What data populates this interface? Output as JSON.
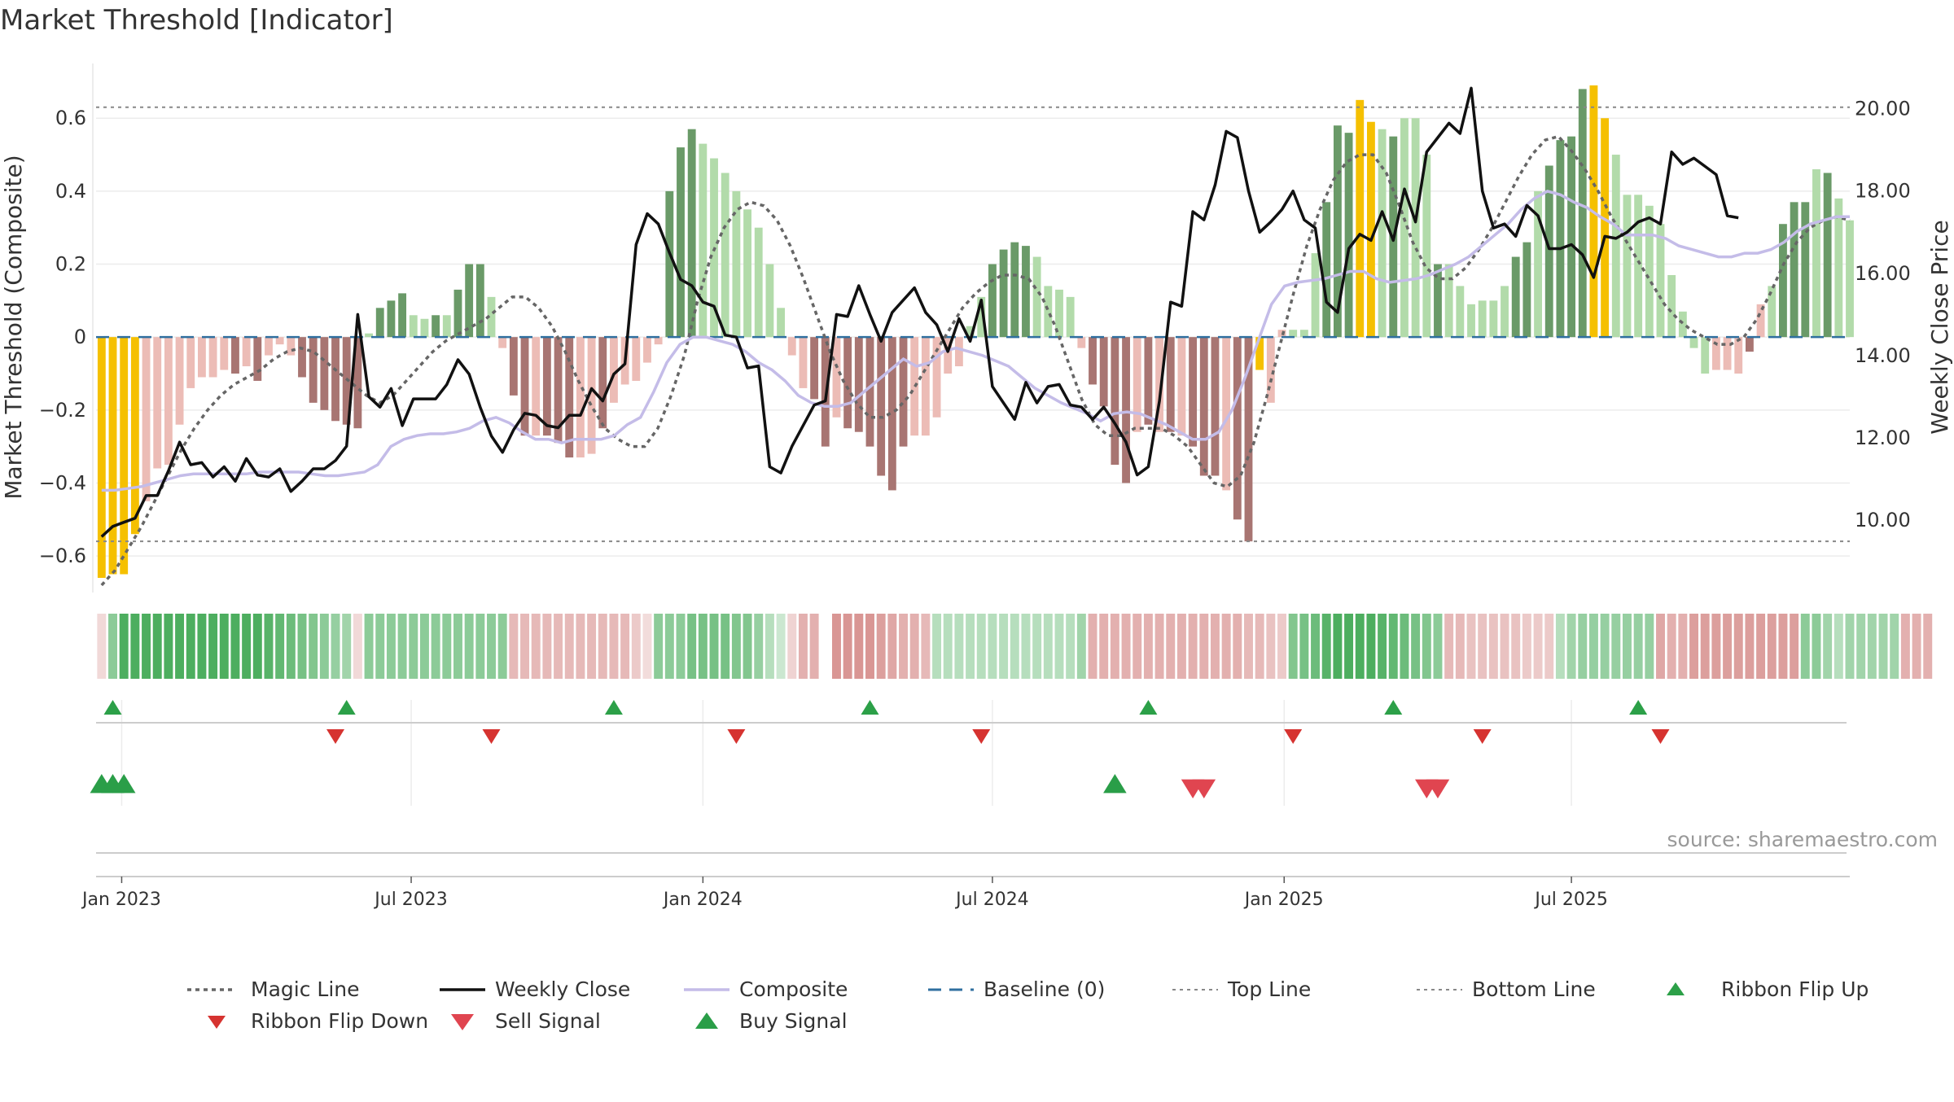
{
  "chart_data": {
    "type": "bar",
    "title": "Market Threshold [Indicator]",
    "ylabel": "Market Threshold (Composite)",
    "y2label": "Weekly Close Price",
    "source": "source: sharemaestro.com",
    "ylim": [
      -0.66,
      0.75
    ],
    "y2lim": [
      8.6,
      21.1
    ],
    "yticks": [
      "0.6",
      "0.4",
      "0.2",
      "0",
      "−0.2",
      "−0.4",
      "−0.6"
    ],
    "ytick_values": [
      0.6,
      0.4,
      0.2,
      0,
      -0.2,
      -0.4,
      -0.6
    ],
    "y2ticks": [
      "20.00",
      "18.00",
      "16.00",
      "14.00",
      "12.00",
      "10.00"
    ],
    "y2tick_values": [
      20,
      18,
      16,
      14,
      12,
      10
    ],
    "xtick_labels": [
      "Jan 2023",
      "Jul 2023",
      "Jan 2024",
      "Jul 2024",
      "Jan 2025",
      "Jul 2025"
    ],
    "xtick_weeks": [
      1.8,
      27.8,
      54,
      80,
      106.2,
      132
    ],
    "top_line": 0.63,
    "bottom_line": -0.56,
    "baseline": 0,
    "grid": true,
    "legend_position": "bottom",
    "colors": {
      "highlight": "#f5c000",
      "pos_strong": "#6a9a68",
      "pos_light": "#b2dbaa",
      "neg_strong": "#a87572",
      "neg_light": "#ecbcb6",
      "weekly_close": "#111111",
      "composite": "#c4bce8",
      "magic": "#666666",
      "baseline": "#2f6f9f",
      "ribbon_up": "#2ca048",
      "ribbon_down": "#d63330",
      "sell": "#e04550",
      "buy": "#2a9e48"
    },
    "legend": [
      {
        "key": "magic",
        "label": "Magic Line"
      },
      {
        "key": "close",
        "label": "Weekly Close"
      },
      {
        "key": "composite",
        "label": "Composite"
      },
      {
        "key": "baseline",
        "label": "Baseline (0)"
      },
      {
        "key": "top",
        "label": "Top Line"
      },
      {
        "key": "bottom",
        "label": "Bottom Line"
      },
      {
        "key": "flip_up",
        "label": "Ribbon Flip Up"
      },
      {
        "key": "flip_down",
        "label": "Ribbon Flip Down"
      },
      {
        "key": "sell",
        "label": "Sell Signal"
      },
      {
        "key": "buy",
        "label": "Buy Signal"
      }
    ],
    "composite_bars": [
      -0.66,
      -0.65,
      -0.65,
      -0.54,
      -0.45,
      -0.36,
      -0.35,
      -0.24,
      -0.14,
      -0.11,
      -0.11,
      -0.09,
      -0.1,
      -0.08,
      -0.12,
      -0.05,
      -0.02,
      -0.05,
      -0.11,
      -0.18,
      -0.2,
      -0.23,
      -0.24,
      -0.25,
      0.01,
      0.08,
      0.1,
      0.12,
      0.06,
      0.05,
      0.06,
      0.06,
      0.13,
      0.2,
      0.2,
      0.11,
      -0.03,
      -0.16,
      -0.27,
      -0.27,
      -0.27,
      -0.29,
      -0.33,
      -0.33,
      -0.32,
      -0.25,
      -0.18,
      -0.13,
      -0.12,
      -0.07,
      -0.02,
      0.4,
      0.52,
      0.57,
      0.53,
      0.49,
      0.45,
      0.4,
      0.35,
      0.3,
      0.2,
      0.08,
      -0.05,
      -0.14,
      -0.17,
      -0.3,
      -0.22,
      -0.25,
      -0.26,
      -0.3,
      -0.38,
      -0.42,
      -0.3,
      -0.27,
      -0.27,
      -0.22,
      -0.1,
      -0.08,
      0.03,
      0.11,
      0.2,
      0.24,
      0.26,
      0.25,
      0.22,
      0.14,
      0.13,
      0.11,
      -0.03,
      -0.13,
      -0.19,
      -0.35,
      -0.4,
      -0.26,
      -0.24,
      -0.26,
      -0.26,
      -0.27,
      -0.3,
      -0.38,
      -0.38,
      -0.42,
      -0.5,
      -0.56,
      -0.09,
      -0.18,
      0.02,
      0.02,
      0.02,
      0.23,
      0.37,
      0.58,
      0.56,
      0.65,
      0.59,
      0.57,
      0.55,
      0.6,
      0.6,
      0.5,
      0.2,
      0.2,
      0.14,
      0.09,
      0.1,
      0.1,
      0.14,
      0.22,
      0.26,
      0.4,
      0.47,
      0.54,
      0.55,
      0.68,
      0.69,
      0.6,
      0.5,
      0.39,
      0.39,
      0.36,
      0.31,
      0.17,
      0.07,
      -0.03,
      -0.1,
      -0.09,
      -0.09,
      -0.1,
      -0.04,
      0.09,
      0.14,
      0.31,
      0.37,
      0.37,
      0.46,
      0.45,
      0.38,
      0.32
    ],
    "bar_styles": [
      "h",
      "h",
      "h",
      "h",
      "nl",
      "nl",
      "nl",
      "nl",
      "nl",
      "nl",
      "nl",
      "nl",
      "ns",
      "nl",
      "ns",
      "nl",
      "nl",
      "nl",
      "ns",
      "ns",
      "ns",
      "ns",
      "ns",
      "ns",
      "pl",
      "ps",
      "ps",
      "ps",
      "pl",
      "pl",
      "ps",
      "pl",
      "ps",
      "ps",
      "ps",
      "pl",
      "nl",
      "ns",
      "ns",
      "nl",
      "ns",
      "ns",
      "ns",
      "nl",
      "nl",
      "ns",
      "nl",
      "nl",
      "nl",
      "nl",
      "nl",
      "ps",
      "ps",
      "ps",
      "pl",
      "pl",
      "pl",
      "pl",
      "pl",
      "pl",
      "pl",
      "pl",
      "nl",
      "nl",
      "ns",
      "ns",
      "nl",
      "ns",
      "ns",
      "ns",
      "ns",
      "ns",
      "ns",
      "nl",
      "nl",
      "nl",
      "nl",
      "nl",
      "pl",
      "pl",
      "ps",
      "ps",
      "ps",
      "ps",
      "pl",
      "pl",
      "pl",
      "pl",
      "nl",
      "ns",
      "ns",
      "ns",
      "ns",
      "nl",
      "ns",
      "nl",
      "ns",
      "nl",
      "ns",
      "ns",
      "ns",
      "nl",
      "ns",
      "ns",
      "h",
      "nl",
      "nl",
      "pl",
      "pl",
      "pl",
      "ps",
      "ps",
      "ps",
      "h",
      "h",
      "pl",
      "ps",
      "pl",
      "pl",
      "pl",
      "ps",
      "pl",
      "pl",
      "pl",
      "pl",
      "pl",
      "pl",
      "ps",
      "ps",
      "pl",
      "ps",
      "ps",
      "ps",
      "ps",
      "h",
      "h",
      "pl",
      "pl",
      "pl",
      "pl",
      "pl",
      "pl",
      "pl",
      "pl",
      "pl",
      "nl",
      "nl",
      "nl",
      "ns",
      "nl",
      "pl",
      "ps",
      "ps",
      "ps",
      "pl",
      "ps",
      "pl",
      "pl",
      "pl"
    ],
    "weekly_close": [
      9.6,
      9.85,
      9.95,
      10.05,
      10.6,
      10.6,
      11.2,
      11.9,
      11.35,
      11.4,
      11.05,
      11.3,
      10.95,
      11.5,
      11.1,
      11.05,
      11.25,
      10.7,
      10.95,
      11.25,
      11.25,
      11.45,
      11.8,
      15.0,
      13.0,
      12.75,
      13.2,
      12.3,
      12.95,
      12.95,
      12.95,
      13.3,
      13.9,
      13.55,
      12.75,
      12.05,
      11.65,
      12.2,
      12.6,
      12.55,
      12.3,
      12.25,
      12.55,
      12.55,
      13.2,
      12.9,
      13.55,
      13.8,
      16.7,
      17.45,
      17.2,
      16.5,
      15.85,
      15.7,
      15.3,
      15.2,
      14.5,
      14.45,
      13.7,
      13.75,
      11.3,
      11.15,
      11.8,
      12.3,
      12.8,
      12.9,
      15.0,
      14.95,
      15.7,
      15.0,
      14.35,
      15.05,
      15.35,
      15.65,
      15.05,
      14.75,
      14.1,
      14.9,
      14.35,
      15.35,
      13.25,
      12.85,
      12.45,
      13.35,
      12.85,
      13.25,
      13.3,
      12.8,
      12.75,
      12.45,
      12.75,
      12.35,
      11.9,
      11.1,
      11.3,
      12.9,
      15.3,
      15.2,
      17.5,
      17.3,
      18.15,
      19.45,
      19.3,
      18.0,
      17.0,
      17.25,
      17.55,
      18.0,
      17.3,
      17.1,
      15.3,
      15.05,
      16.6,
      16.95,
      16.8,
      17.5,
      16.8,
      18.05,
      17.25,
      18.95,
      19.3,
      19.65,
      19.4,
      20.5,
      18.0,
      17.1,
      17.2,
      16.9,
      17.65,
      17.4,
      16.6,
      16.6,
      16.7,
      16.45,
      15.9,
      16.9,
      16.85,
      17.0,
      17.25,
      17.35,
      17.2,
      18.95,
      18.65,
      18.8,
      18.6,
      18.4,
      17.4,
      17.35
    ],
    "composite_line": [
      -0.42,
      -0.42,
      -0.415,
      -0.41,
      -0.4,
      -0.39,
      -0.38,
      -0.375,
      -0.375,
      -0.375,
      -0.375,
      -0.375,
      -0.37,
      -0.37,
      -0.37,
      -0.37,
      -0.375,
      -0.38,
      -0.38,
      -0.375,
      -0.37,
      -0.35,
      -0.3,
      -0.28,
      -0.27,
      -0.265,
      -0.265,
      -0.26,
      -0.25,
      -0.23,
      -0.22,
      -0.235,
      -0.26,
      -0.28,
      -0.28,
      -0.29,
      -0.28,
      -0.28,
      -0.28,
      -0.27,
      -0.24,
      -0.22,
      -0.15,
      -0.07,
      -0.02,
      0,
      0,
      -0.01,
      -0.02,
      -0.04,
      -0.07,
      -0.09,
      -0.12,
      -0.16,
      -0.18,
      -0.19,
      -0.19,
      -0.18,
      -0.15,
      -0.12,
      -0.09,
      -0.06,
      -0.08,
      -0.07,
      -0.04,
      -0.03,
      -0.04,
      -0.05,
      -0.065,
      -0.08,
      -0.11,
      -0.14,
      -0.16,
      -0.18,
      -0.195,
      -0.21,
      -0.23,
      -0.21,
      -0.205,
      -0.21,
      -0.225,
      -0.24,
      -0.26,
      -0.28,
      -0.28,
      -0.26,
      -0.2,
      -0.11,
      -0.01,
      0.09,
      0.14,
      0.15,
      0.155,
      0.16,
      0.17,
      0.18,
      0.18,
      0.16,
      0.15,
      0.155,
      0.16,
      0.17,
      0.185,
      0.2,
      0.22,
      0.25,
      0.28,
      0.31,
      0.35,
      0.38,
      0.4,
      0.39,
      0.37,
      0.355,
      0.33,
      0.31,
      0.28,
      0.28,
      0.28,
      0.27,
      0.25,
      0.24,
      0.23,
      0.22,
      0.22,
      0.23,
      0.23,
      0.24,
      0.26,
      0.29,
      0.31,
      0.32,
      0.33,
      0.33
    ],
    "composite_line_start": 0,
    "magic_line": [
      -0.68,
      -0.64,
      -0.58,
      -0.52,
      -0.45,
      -0.38,
      -0.31,
      -0.25,
      -0.2,
      -0.16,
      -0.13,
      -0.11,
      -0.09,
      -0.06,
      -0.04,
      -0.03,
      -0.04,
      -0.07,
      -0.1,
      -0.13,
      -0.16,
      -0.18,
      -0.16,
      -0.12,
      -0.08,
      -0.04,
      -0.01,
      0.01,
      0.03,
      0.05,
      0.08,
      0.11,
      0.11,
      0.08,
      0.03,
      -0.04,
      -0.12,
      -0.19,
      -0.25,
      -0.28,
      -0.3,
      -0.3,
      -0.25,
      -0.16,
      -0.05,
      0.1,
      0.22,
      0.3,
      0.35,
      0.37,
      0.36,
      0.32,
      0.25,
      0.16,
      0.06,
      -0.04,
      -0.12,
      -0.18,
      -0.22,
      -0.22,
      -0.2,
      -0.16,
      -0.1,
      -0.04,
      0.02,
      0.08,
      0.12,
      0.15,
      0.17,
      0.17,
      0.16,
      0.11,
      0.03,
      -0.07,
      -0.17,
      -0.24,
      -0.27,
      -0.27,
      -0.25,
      -0.25,
      -0.25,
      -0.27,
      -0.3,
      -0.35,
      -0.4,
      -0.41,
      -0.38,
      -0.29,
      -0.16,
      -0.02,
      0.12,
      0.25,
      0.35,
      0.43,
      0.48,
      0.5,
      0.5,
      0.45,
      0.36,
      0.26,
      0.19,
      0.16,
      0.16,
      0.19,
      0.24,
      0.3,
      0.37,
      0.44,
      0.5,
      0.54,
      0.55,
      0.51,
      0.46,
      0.4,
      0.33,
      0.27,
      0.21,
      0.15,
      0.09,
      0.05,
      0.02,
      0,
      -0.02,
      -0.02,
      0,
      0.05,
      0.12,
      0.2,
      0.26,
      0.3,
      0.32,
      0.33,
      0.32
    ],
    "magic_line_start": 0,
    "ribbon_opacity": [
      0.22,
      0.55,
      0.85,
      0.85,
      0.85,
      0.85,
      0.85,
      0.85,
      0.85,
      0.85,
      0.85,
      0.85,
      0.85,
      0.85,
      0.85,
      0.8,
      0.75,
      0.7,
      0.65,
      0.6,
      0.55,
      0.5,
      0.45,
      0.22,
      0.55,
      0.55,
      0.55,
      0.55,
      0.55,
      0.55,
      0.55,
      0.55,
      0.55,
      0.55,
      0.55,
      0.55,
      0.55,
      0.4,
      0.4,
      0.4,
      0.4,
      0.4,
      0.4,
      0.4,
      0.4,
      0.4,
      0.4,
      0.4,
      0.3,
      0.2,
      0.55,
      0.55,
      0.55,
      0.65,
      0.65,
      0.65,
      0.65,
      0.6,
      0.6,
      0.5,
      0.35,
      0.25,
      0.25,
      0.45,
      0.45,
      -1,
      0.6,
      0.6,
      0.6,
      0.6,
      0.55,
      0.5,
      0.45,
      0.45,
      0.4,
      0.35,
      0.35,
      0.35,
      0.35,
      0.35,
      0.35,
      0.35,
      0.35,
      0.35,
      0.35,
      0.35,
      0.35,
      0.35,
      0.45,
      0.45,
      0.45,
      0.45,
      0.45,
      0.45,
      0.45,
      0.45,
      0.45,
      0.45,
      0.45,
      0.45,
      0.45,
      0.45,
      0.45,
      0.4,
      0.4,
      0.35,
      0.3,
      0.6,
      0.65,
      0.7,
      0.8,
      0.85,
      0.85,
      0.85,
      0.85,
      0.8,
      0.75,
      0.7,
      0.65,
      0.6,
      0.55,
      0.4,
      0.4,
      0.35,
      0.35,
      0.35,
      0.35,
      0.35,
      0.3,
      0.3,
      0.3,
      0.35,
      0.45,
      0.5,
      0.5,
      0.5,
      0.5,
      0.5,
      0.5,
      0.5,
      0.5,
      0.45,
      0.45,
      0.55,
      0.55,
      0.55,
      0.55,
      0.55,
      0.55,
      0.55,
      0.55,
      0.55,
      0.55,
      0.55,
      0.55,
      0.45,
      0.35,
      0.45,
      0.45,
      0.45,
      0.45,
      0.45,
      0.45,
      0.45,
      0.45
    ],
    "ribbon_sign": [
      -1,
      1,
      1,
      1,
      1,
      1,
      1,
      1,
      1,
      1,
      1,
      1,
      1,
      1,
      1,
      1,
      1,
      1,
      1,
      1,
      1,
      1,
      1,
      -1,
      1,
      1,
      1,
      1,
      1,
      1,
      1,
      1,
      1,
      1,
      1,
      1,
      1,
      -1,
      -1,
      -1,
      -1,
      -1,
      -1,
      -1,
      -1,
      -1,
      -1,
      -1,
      -1,
      -1,
      1,
      1,
      1,
      1,
      1,
      1,
      1,
      1,
      1,
      1,
      1,
      1,
      -1,
      -1,
      -1,
      0,
      -1,
      -1,
      -1,
      -1,
      -1,
      -1,
      -1,
      -1,
      -1,
      1,
      1,
      1,
      1,
      1,
      1,
      1,
      1,
      1,
      1,
      1,
      1,
      1,
      1,
      -1,
      -1,
      -1,
      -1,
      -1,
      -1,
      -1,
      -1,
      -1,
      -1,
      -1,
      -1,
      -1,
      -1,
      -1,
      -1,
      -1,
      -1,
      1,
      1,
      1,
      1,
      1,
      1,
      1,
      1,
      1,
      1,
      1,
      1,
      1,
      1,
      -1,
      -1,
      -1,
      -1,
      -1,
      -1,
      -1,
      -1,
      -1,
      -1,
      1,
      1,
      1,
      1,
      1,
      1,
      1,
      1,
      1,
      -1,
      -1,
      -1,
      -1,
      -1,
      -1,
      -1,
      -1,
      -1,
      -1,
      -1,
      -1,
      -1,
      1,
      1,
      1,
      1,
      1,
      1,
      1,
      1,
      1
    ],
    "ribbon_flip_up_weeks": [
      1,
      22,
      46,
      69,
      94,
      116,
      138
    ],
    "ribbon_flip_down_weeks": [
      21,
      35,
      57,
      79,
      107,
      124,
      140
    ],
    "buy_signal_weeks": [
      0,
      1,
      2,
      91
    ],
    "sell_signal_weeks": [
      98,
      99,
      119,
      120
    ]
  }
}
